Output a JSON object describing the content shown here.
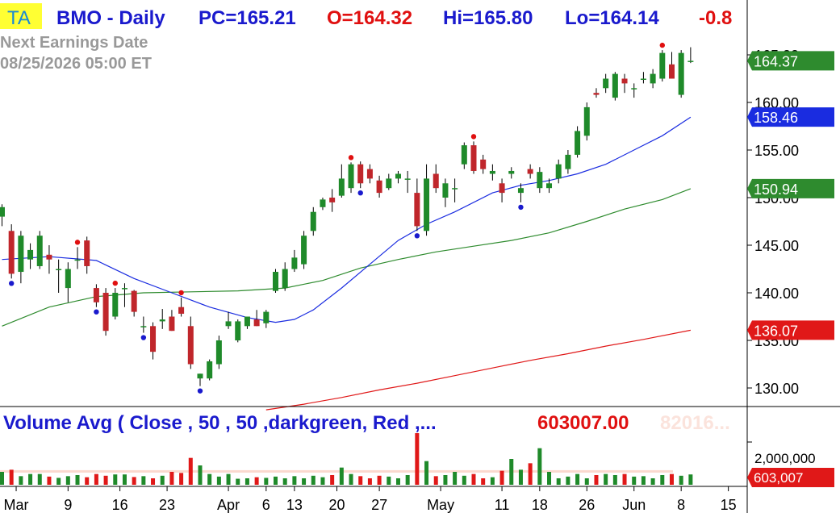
{
  "header": {
    "badge": "TA",
    "symbol": "BMO - Daily",
    "pc": "PC=165.21",
    "open": "O=164.32",
    "hi": "Hi=165.80",
    "lo": "Lo=164.14",
    "change": "-0.8",
    "earnings_label": "Next Earnings Date",
    "earnings_date": "08/25/2026  05:00 ET"
  },
  "volume_header": {
    "title": "Volume Avg ( Close , 50 , 50 ,darkgreen, Red ,...",
    "value": "603007.00",
    "faded": "82016..."
  },
  "colors": {
    "up": "#1f8a2a",
    "down": "#c0262b",
    "ma_fast": "#1a2ce0",
    "ma_mid": "#2e8b2e",
    "ma_slow": "#e01818",
    "header_blue": "#1a1acd",
    "header_red": "#e01010",
    "badge_bg": "#ffff33",
    "badge_text": "#1a8ad4"
  },
  "chart_data": {
    "type": "candlestick",
    "x_ticks": [
      "Mar",
      "9",
      "16",
      "23",
      "Apr",
      "6",
      "13",
      "20",
      "27",
      "May",
      "11",
      "18",
      "26",
      "Jun",
      "8",
      "15"
    ],
    "y_ticks": [
      "130.00",
      "135.00",
      "140.00",
      "145.00",
      "150.00",
      "155.00",
      "160.00",
      "165.00"
    ],
    "ylim": [
      127.5,
      167.5
    ],
    "price_labels": [
      {
        "value": 164.37,
        "text": "164.37",
        "color": "#2e8b2e"
      },
      {
        "value": 158.46,
        "text": "158.46",
        "color": "#1a2ce0"
      },
      {
        "value": 150.94,
        "text": "150.94",
        "color": "#2e8b2e"
      },
      {
        "value": 136.07,
        "text": "136.07",
        "color": "#e01818"
      }
    ],
    "candles": [
      {
        "o": 148.0,
        "h": 149.3,
        "l": 147.0,
        "c": 149.0
      },
      {
        "o": 146.5,
        "h": 147.2,
        "l": 141.5,
        "c": 142.0
      },
      {
        "o": 142.2,
        "h": 146.5,
        "l": 141.0,
        "c": 146.0
      },
      {
        "o": 143.5,
        "h": 145.2,
        "l": 142.5,
        "c": 144.5
      },
      {
        "o": 142.8,
        "h": 146.5,
        "l": 142.5,
        "c": 146.0
      },
      {
        "o": 144.0,
        "h": 145.0,
        "l": 142.0,
        "c": 143.5
      },
      {
        "o": 142.5,
        "h": 143.5,
        "l": 140.0,
        "c": 142.5
      },
      {
        "o": 140.5,
        "h": 143.2,
        "l": 139.0,
        "c": 142.5
      },
      {
        "o": 143.5,
        "h": 144.8,
        "l": 142.5,
        "c": 143.5
      },
      {
        "o": 145.5,
        "h": 145.9,
        "l": 142.0,
        "c": 142.8
      },
      {
        "o": 140.5,
        "h": 140.9,
        "l": 138.5,
        "c": 139.0
      },
      {
        "o": 140.0,
        "h": 140.5,
        "l": 135.5,
        "c": 136.0
      },
      {
        "o": 137.5,
        "h": 140.5,
        "l": 137.2,
        "c": 140.0
      },
      {
        "o": 140.5,
        "h": 141.0,
        "l": 138.5,
        "c": 140.5
      },
      {
        "o": 140.2,
        "h": 140.3,
        "l": 137.5,
        "c": 138.0
      },
      {
        "o": 136.5,
        "h": 137.5,
        "l": 135.8,
        "c": 136.5
      },
      {
        "o": 136.5,
        "h": 136.9,
        "l": 133.0,
        "c": 133.8
      },
      {
        "o": 137.0,
        "h": 138.3,
        "l": 136.2,
        "c": 137.2
      },
      {
        "o": 137.5,
        "h": 138.2,
        "l": 136.0,
        "c": 136.0
      },
      {
        "o": 138.5,
        "h": 139.5,
        "l": 137.5,
        "c": 137.8
      },
      {
        "o": 136.5,
        "h": 137.5,
        "l": 132.0,
        "c": 132.5
      },
      {
        "o": 131.0,
        "h": 131.5,
        "l": 130.2,
        "c": 131.5
      },
      {
        "o": 131.0,
        "h": 133.0,
        "l": 130.8,
        "c": 132.8
      },
      {
        "o": 132.5,
        "h": 135.5,
        "l": 132.0,
        "c": 135.0
      },
      {
        "o": 136.5,
        "h": 138.0,
        "l": 136.2,
        "c": 137.0
      },
      {
        "o": 135.0,
        "h": 137.2,
        "l": 134.8,
        "c": 137.0
      },
      {
        "o": 136.5,
        "h": 137.5,
        "l": 136.2,
        "c": 137.5
      },
      {
        "o": 137.2,
        "h": 138.2,
        "l": 136.5,
        "c": 136.5
      },
      {
        "o": 136.8,
        "h": 138.2,
        "l": 136.3,
        "c": 138.0
      },
      {
        "o": 140.2,
        "h": 142.5,
        "l": 140.0,
        "c": 142.2
      },
      {
        "o": 140.5,
        "h": 143.2,
        "l": 140.2,
        "c": 142.5
      },
      {
        "o": 142.5,
        "h": 144.5,
        "l": 142.2,
        "c": 143.7
      },
      {
        "o": 143.0,
        "h": 146.5,
        "l": 142.5,
        "c": 146.0
      },
      {
        "o": 146.5,
        "h": 149.0,
        "l": 146.0,
        "c": 148.5
      },
      {
        "o": 149.0,
        "h": 150.0,
        "l": 148.7,
        "c": 149.8
      },
      {
        "o": 150.0,
        "h": 150.9,
        "l": 148.5,
        "c": 149.5
      },
      {
        "o": 150.2,
        "h": 153.5,
        "l": 150.0,
        "c": 152.0
      },
      {
        "o": 151.0,
        "h": 153.7,
        "l": 150.5,
        "c": 153.5
      },
      {
        "o": 153.5,
        "h": 153.8,
        "l": 151.0,
        "c": 151.5
      },
      {
        "o": 153.0,
        "h": 153.5,
        "l": 151.5,
        "c": 152.0
      },
      {
        "o": 151.8,
        "h": 152.3,
        "l": 150.0,
        "c": 150.5
      },
      {
        "o": 151.0,
        "h": 152.5,
        "l": 150.8,
        "c": 152.0
      },
      {
        "o": 152.0,
        "h": 152.8,
        "l": 151.5,
        "c": 152.5
      },
      {
        "o": 152.0,
        "h": 152.8,
        "l": 150.5,
        "c": 152.0
      },
      {
        "o": 150.5,
        "h": 152.0,
        "l": 146.5,
        "c": 147.0
      },
      {
        "o": 146.5,
        "h": 153.5,
        "l": 146.0,
        "c": 152.0
      },
      {
        "o": 152.5,
        "h": 153.5,
        "l": 150.5,
        "c": 151.0
      },
      {
        "o": 150.0,
        "h": 152.0,
        "l": 149.0,
        "c": 151.5
      },
      {
        "o": 151.0,
        "h": 152.0,
        "l": 149.5,
        "c": 151.0
      },
      {
        "o": 153.5,
        "h": 155.8,
        "l": 153.0,
        "c": 155.5
      },
      {
        "o": 155.5,
        "h": 155.9,
        "l": 152.5,
        "c": 152.8
      },
      {
        "o": 154.0,
        "h": 154.5,
        "l": 152.5,
        "c": 153.0
      },
      {
        "o": 152.5,
        "h": 153.5,
        "l": 151.8,
        "c": 152.8
      },
      {
        "o": 151.5,
        "h": 152.0,
        "l": 149.5,
        "c": 150.5
      },
      {
        "o": 152.5,
        "h": 153.2,
        "l": 152.0,
        "c": 152.8
      },
      {
        "o": 150.5,
        "h": 151.5,
        "l": 149.5,
        "c": 151.0
      },
      {
        "o": 153.0,
        "h": 153.5,
        "l": 152.0,
        "c": 152.5
      },
      {
        "o": 151.0,
        "h": 153.2,
        "l": 150.5,
        "c": 152.7
      },
      {
        "o": 151.0,
        "h": 152.0,
        "l": 150.5,
        "c": 151.5
      },
      {
        "o": 152.0,
        "h": 154.0,
        "l": 151.5,
        "c": 153.5
      },
      {
        "o": 153.0,
        "h": 155.0,
        "l": 152.5,
        "c": 154.5
      },
      {
        "o": 154.5,
        "h": 157.5,
        "l": 154.2,
        "c": 157.0
      },
      {
        "o": 156.5,
        "h": 160.0,
        "l": 156.0,
        "c": 159.5
      },
      {
        "o": 161.0,
        "h": 161.5,
        "l": 160.5,
        "c": 160.8
      },
      {
        "o": 161.5,
        "h": 163.0,
        "l": 161.0,
        "c": 162.5
      },
      {
        "o": 160.5,
        "h": 163.2,
        "l": 160.2,
        "c": 163.0
      },
      {
        "o": 162.5,
        "h": 163.0,
        "l": 161.0,
        "c": 162.0
      },
      {
        "o": 161.5,
        "h": 162.0,
        "l": 160.5,
        "c": 161.5
      },
      {
        "o": 162.5,
        "h": 163.2,
        "l": 162.0,
        "c": 162.5
      },
      {
        "o": 162.0,
        "h": 163.5,
        "l": 161.5,
        "c": 163.0
      },
      {
        "o": 162.5,
        "h": 165.5,
        "l": 162.2,
        "c": 165.2
      },
      {
        "o": 164.0,
        "h": 165.3,
        "l": 162.5,
        "c": 162.5
      },
      {
        "o": 160.8,
        "h": 165.5,
        "l": 160.5,
        "c": 165.2
      },
      {
        "o": 164.32,
        "h": 165.8,
        "l": 164.14,
        "c": 164.37
      }
    ],
    "ma_fast": [
      [
        0,
        143.5
      ],
      [
        5,
        143.8
      ],
      [
        10,
        143.4
      ],
      [
        14,
        141.5
      ],
      [
        18,
        140.0
      ],
      [
        22,
        138.5
      ],
      [
        26,
        137.4
      ],
      [
        29,
        136.9
      ],
      [
        31,
        137.2
      ],
      [
        33,
        138.2
      ],
      [
        36,
        140.5
      ],
      [
        39,
        143.0
      ],
      [
        42,
        145.5
      ],
      [
        45,
        147.2
      ],
      [
        48,
        148.5
      ],
      [
        52,
        150.5
      ],
      [
        55,
        151.3
      ],
      [
        58,
        151.8
      ],
      [
        61,
        152.5
      ],
      [
        64,
        153.5
      ],
      [
        67,
        155.0
      ],
      [
        70,
        156.5
      ],
      [
        73,
        158.46
      ]
    ],
    "ma_mid": [
      [
        0,
        136.5
      ],
      [
        5,
        138.5
      ],
      [
        10,
        139.6
      ],
      [
        15,
        140.0
      ],
      [
        20,
        140.1
      ],
      [
        25,
        140.2
      ],
      [
        30,
        140.5
      ],
      [
        34,
        141.3
      ],
      [
        38,
        142.6
      ],
      [
        42,
        143.5
      ],
      [
        46,
        144.3
      ],
      [
        50,
        144.9
      ],
      [
        54,
        145.5
      ],
      [
        58,
        146.3
      ],
      [
        62,
        147.5
      ],
      [
        66,
        148.8
      ],
      [
        70,
        149.8
      ],
      [
        73,
        150.94
      ]
    ],
    "ma_slow": [
      [
        28,
        127.7
      ],
      [
        32,
        128.3
      ],
      [
        36,
        129.0
      ],
      [
        40,
        129.8
      ],
      [
        44,
        130.5
      ],
      [
        48,
        131.3
      ],
      [
        52,
        132.1
      ],
      [
        56,
        132.9
      ],
      [
        60,
        133.6
      ],
      [
        64,
        134.4
      ],
      [
        68,
        135.1
      ],
      [
        73,
        136.07
      ]
    ],
    "signals_high": [
      8,
      12,
      19,
      37,
      50,
      70
    ],
    "signals_low": [
      1,
      10,
      15,
      21,
      38,
      44,
      55
    ],
    "volume": {
      "y_tick": "2,000,000",
      "last": "603,007",
      "avg": 603007,
      "bars": [
        600000,
        700000,
        400000,
        500000,
        500000,
        380000,
        320000,
        400000,
        450000,
        350000,
        500000,
        420000,
        480000,
        480000,
        360000,
        400000,
        300000,
        420000,
        600000,
        550000,
        1250000,
        900000,
        500000,
        380000,
        500000,
        280000,
        300000,
        350000,
        320000,
        380000,
        300000,
        400000,
        300000,
        420000,
        350000,
        450000,
        800000,
        500000,
        400000,
        300000,
        420000,
        380000,
        300000,
        450000,
        2400000,
        1100000,
        400000,
        450000,
        600000,
        420000,
        500000,
        300000,
        350000,
        650000,
        1200000,
        700000,
        1000000,
        1700000,
        600000,
        300000,
        380000,
        500000,
        300000,
        450000,
        500000,
        450000,
        500000,
        380000,
        400000,
        300000,
        450000,
        500000,
        420000,
        480000
      ]
    }
  }
}
